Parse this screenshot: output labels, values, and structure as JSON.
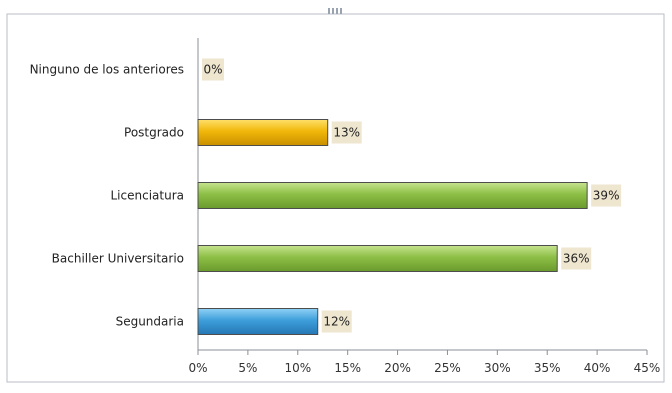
{
  "chart_data": {
    "type": "bar",
    "orientation": "horizontal",
    "categories": [
      "Segundaria",
      "Bachiller Universitario",
      "Licenciatura",
      "Postgrado",
      "Ninguno de los anteriores"
    ],
    "values": [
      12,
      36,
      39,
      13,
      0
    ],
    "data_labels": [
      "12%",
      "36%",
      "39%",
      "13%",
      "0%"
    ],
    "bar_colors": [
      "#3e9fda",
      "#8dbf46",
      "#8dbf46",
      "#f1b70a",
      "#f1b70a"
    ],
    "xlim": [
      0,
      45
    ],
    "x_ticks": [
      0,
      5,
      10,
      15,
      20,
      25,
      30,
      35,
      40,
      45
    ],
    "x_tick_labels": [
      "0%",
      "5%",
      "10%",
      "15%",
      "20%",
      "25%",
      "30%",
      "35%",
      "40%",
      "45%"
    ],
    "title": "",
    "xlabel": "",
    "ylabel": "",
    "grid": false,
    "legend": "none"
  }
}
